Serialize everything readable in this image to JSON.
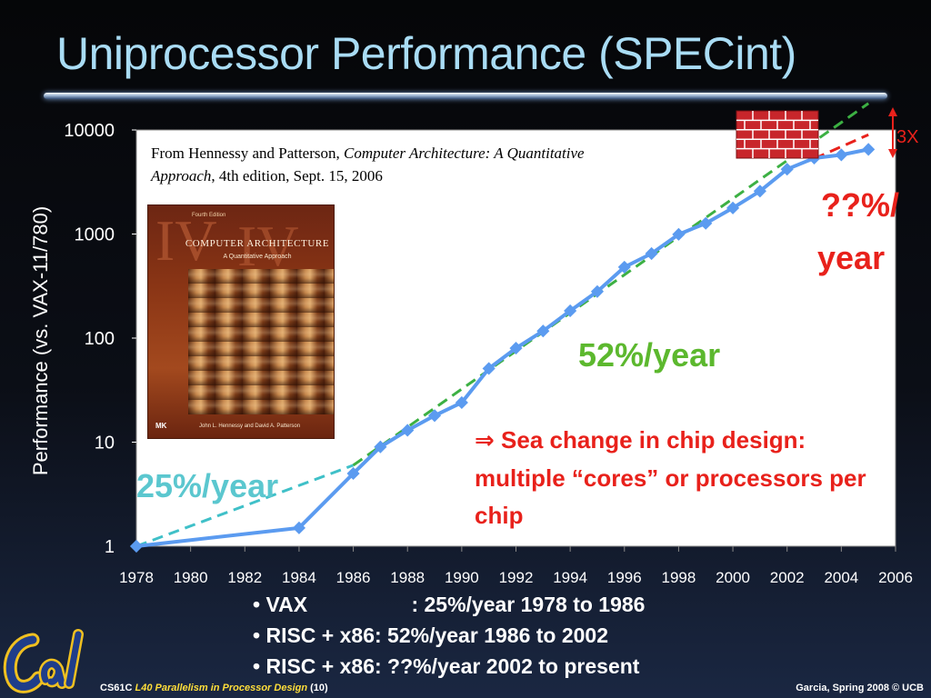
{
  "slide": {
    "title": "Uniprocessor Performance (SPECint)"
  },
  "citation": {
    "prefix": "From Hennessy and Patterson, ",
    "book_title": "Computer Architecture: A Quantitative Approach",
    "suffix": ", 4th edition, Sept. 15, 2006"
  },
  "book_cover": {
    "edition": "Fourth Edition",
    "title": "COMPUTER ARCHITECTURE",
    "subtitle": "A Quantitative Approach",
    "authors": "John L. Hennessy and David A. Patterson",
    "publisher": "MK"
  },
  "annotations": {
    "rate_early": "25%/year",
    "rate_mid": "52%/year",
    "rate_late_line1": "??%/",
    "rate_late_line2": "year",
    "gap": "3X"
  },
  "sea_change": {
    "arrow": "⇒",
    "text": "Sea change in chip design: multiple “cores” or processors per chip"
  },
  "bullets": [
    {
      "label": "VAX",
      "text": ": 25%/year 1978 to 1986"
    },
    {
      "label": "RISC + x86",
      "text": ": 52%/year 1986 to 2002"
    },
    {
      "label": "RISC + x86",
      "text": ": ??%/year 2002 to present"
    }
  ],
  "footer": {
    "course_code": "CS61C",
    "lecture": "L40 Parallelism in Processor Design",
    "page": "(10)",
    "credit": "Garcia, Spring 2008 © UCB"
  },
  "chart_data": {
    "type": "line",
    "ylabel": "Performance (vs. VAX-11/780)",
    "xlabel": "",
    "y_scale": "log",
    "ylim": [
      1,
      10000
    ],
    "xlim": [
      1978,
      2006
    ],
    "y_ticks": [
      1,
      10,
      100,
      1000,
      10000
    ],
    "x_ticks": [
      1978,
      1980,
      1982,
      1984,
      1986,
      1988,
      1990,
      1992,
      1994,
      1996,
      1998,
      2000,
      2002,
      2004,
      2006
    ],
    "series": [
      {
        "color": "#5b9bf0",
        "x": [
          1978,
          1984,
          1986,
          1987,
          1988,
          1989,
          1990,
          1991,
          1992,
          1993,
          1994,
          1995,
          1996,
          1997,
          1998,
          1999,
          2000,
          2001,
          2002,
          2003,
          2004,
          2005
        ],
        "y": [
          1,
          1.5,
          5,
          9,
          13,
          18,
          24,
          51,
          80,
          117,
          183,
          280,
          481,
          649,
          993,
          1267,
          1779,
          2584,
          4195,
          5364,
          5764,
          6505
        ]
      }
    ],
    "trend_lines": [
      {
        "label": "25%/year",
        "color": "#3fc0c8",
        "from": [
          1978,
          1
        ],
        "to": [
          1986,
          6
        ]
      },
      {
        "label": "52%/year",
        "color": "#3cb043",
        "from": [
          1986,
          6
        ],
        "to": [
          2005,
          18000
        ]
      },
      {
        "label": "??%/year",
        "color": "#e8211b",
        "from": [
          2003,
          5300
        ],
        "to": [
          2005,
          9000
        ]
      }
    ],
    "grid": false,
    "background": "#ffffff",
    "wall_icon": "brick-wall-icon"
  }
}
